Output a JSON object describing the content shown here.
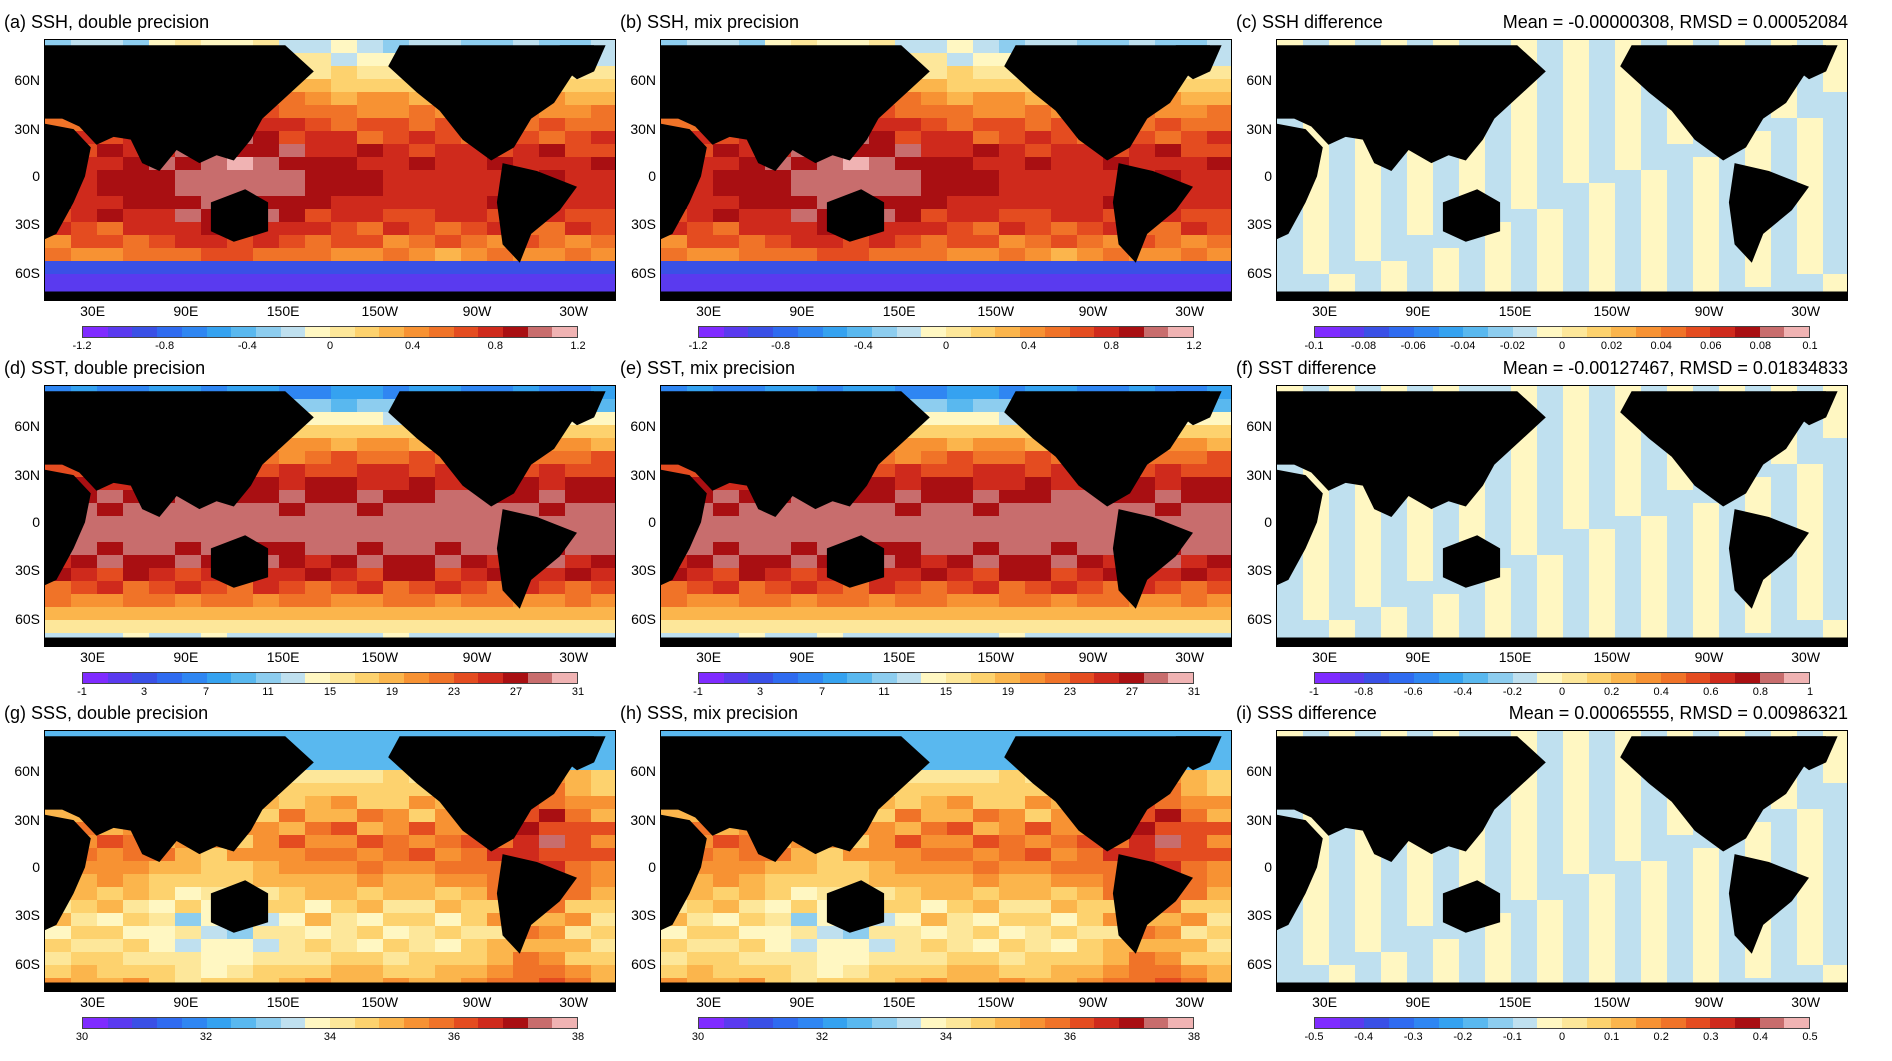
{
  "lon_labels": [
    "30E",
    "90E",
    "150E",
    "150W",
    "90W",
    "30W"
  ],
  "lat_labels": [
    "60N",
    "30N",
    "0",
    "30S",
    "60S"
  ],
  "palette": [
    "#7f2bff",
    "#5a3aef",
    "#3a50e6",
    "#2f6bf0",
    "#2f86f2",
    "#35a2f0",
    "#59b8ef",
    "#8dcdef",
    "#bfe0ef",
    "#fff7c2",
    "#fde79a",
    "#fdd26e",
    "#fbb54c",
    "#f79233",
    "#f07328",
    "#e44c20",
    "#cf2a1c",
    "#a90f12",
    "#c86d6d",
    "#f0b3b3"
  ],
  "land_color": "#000000",
  "panels": [
    {
      "id": "a",
      "title": "(a) SSH, double precision",
      "stats": "",
      "ticks": [
        "-1.2",
        "-0.8",
        "-0.4",
        "0",
        "0.4",
        "0.8",
        "1.2"
      ],
      "field": "ssh"
    },
    {
      "id": "b",
      "title": "(b) SSH, mix precision",
      "stats": "",
      "ticks": [
        "-1.2",
        "-0.8",
        "-0.4",
        "0",
        "0.4",
        "0.8",
        "1.2"
      ],
      "field": "ssh"
    },
    {
      "id": "c",
      "title": "(c) SSH difference",
      "stats": "Mean = -0.00000308, RMSD = 0.00052084",
      "ticks": [
        "-0.1",
        "-0.08",
        "-0.06",
        "-0.04",
        "-0.02",
        "0",
        "0.02",
        "0.04",
        "0.06",
        "0.08",
        "0.1"
      ],
      "field": "diff"
    },
    {
      "id": "d",
      "title": "(d) SST, double precision",
      "stats": "",
      "ticks": [
        "-1",
        "3",
        "7",
        "11",
        "15",
        "19",
        "23",
        "27",
        "31"
      ],
      "field": "sst"
    },
    {
      "id": "e",
      "title": "(e) SST, mix precision",
      "stats": "",
      "ticks": [
        "-1",
        "3",
        "7",
        "11",
        "15",
        "19",
        "23",
        "27",
        "31"
      ],
      "field": "sst"
    },
    {
      "id": "f",
      "title": "(f) SST difference",
      "stats": "Mean = -0.00127467, RMSD = 0.01834833",
      "ticks": [
        "-1",
        "-0.8",
        "-0.6",
        "-0.4",
        "-0.2",
        "0",
        "0.2",
        "0.4",
        "0.6",
        "0.8",
        "1"
      ],
      "field": "diff"
    },
    {
      "id": "g",
      "title": "(g) SSS, double precision",
      "stats": "",
      "ticks": [
        "30",
        "32",
        "34",
        "36",
        "38"
      ],
      "field": "sss"
    },
    {
      "id": "h",
      "title": "(h) SSS, mix precision",
      "stats": "",
      "ticks": [
        "30",
        "32",
        "34",
        "36",
        "38"
      ],
      "field": "sss"
    },
    {
      "id": "i",
      "title": "(i) SSS difference",
      "stats": "Mean = 0.00065555, RMSD = 0.00986321",
      "ticks": [
        "-0.5",
        "-0.4",
        "-0.3",
        "-0.2",
        "-0.1",
        "0",
        "0.1",
        "0.2",
        "0.3",
        "0.4",
        "0.5"
      ],
      "field": "diff"
    }
  ]
}
